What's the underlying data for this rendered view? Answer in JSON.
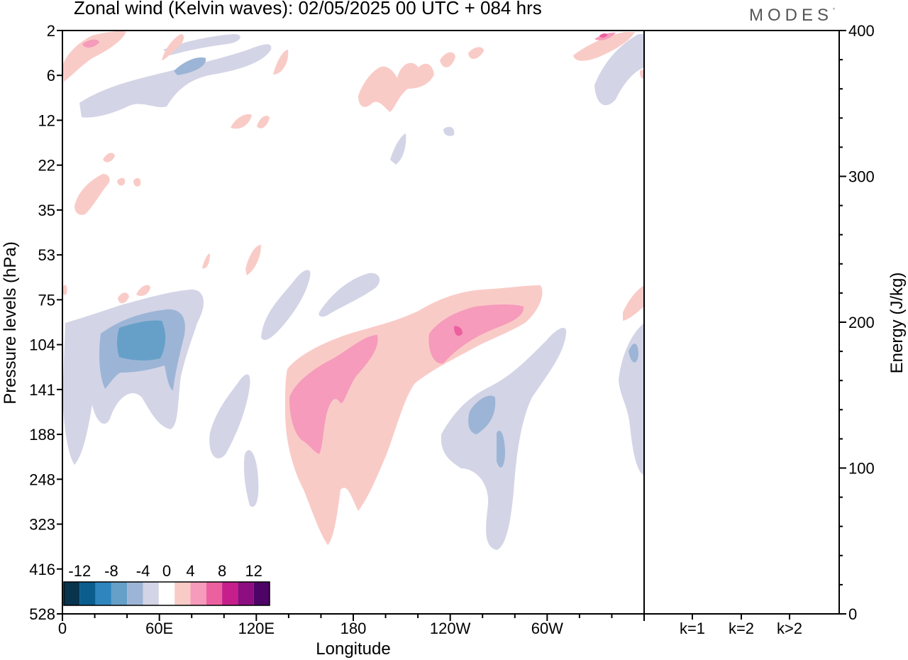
{
  "title": "Zonal wind (Kelvin waves):  02/05/2025  00 UTC  + 084 hrs",
  "logo": {
    "text": "MODES",
    "mark": "°"
  },
  "colors": {
    "levels": [
      "#08344e",
      "#0b5d8e",
      "#2f86bf",
      "#66a0c8",
      "#9cb5d6",
      "#d3d4e6",
      "#ffffff",
      "#f9cbc7",
      "#f69bbb",
      "#ec609f",
      "#c61f8c",
      "#8c0e80",
      "#4d0466"
    ],
    "neg4": "#d3d4e6",
    "neg8": "#9cb5d6",
    "neg12": "#66a0c8",
    "pos4": "#f9cbc7",
    "pos8": "#f69bbb",
    "pos12": "#ec609f"
  },
  "chart_data": [
    {
      "type": "heatmap",
      "title": "Zonal wind (Kelvin waves):  02/05/2025  00 UTC  + 084 hrs",
      "xlabel": "Longitude",
      "ylabel": "Pressure levels (hPa)",
      "xticks": [
        "0",
        "60E",
        "120E",
        "180",
        "120W",
        "60W"
      ],
      "yticks": [
        "2",
        "6",
        "12",
        "22",
        "35",
        "53",
        "75",
        "104",
        "141",
        "188",
        "248",
        "323",
        "416",
        "528"
      ],
      "colorbar": {
        "labels": [
          "-12",
          "-8",
          "-4",
          "0",
          "4",
          "8",
          "12"
        ]
      },
      "features": [
        {
          "sign": "negative",
          "lon_range": [
            25,
            75
          ],
          "pressure_range": [
            75,
            188
          ],
          "peak_ms": -10
        },
        {
          "sign": "positive",
          "lon_range": [
            130,
            280
          ],
          "pressure_range": [
            75,
            416
          ],
          "peak_ms": 9
        },
        {
          "sign": "negative",
          "lon_range": [
            225,
            290
          ],
          "pressure_range": [
            75,
            416
          ],
          "peak_ms": -7
        },
        {
          "sign": "negative",
          "lon_range": [
            10,
            120
          ],
          "pressure_range": [
            2,
            12
          ],
          "peak_ms": -6
        }
      ]
    },
    {
      "type": "bar",
      "categories": [
        "k=1",
        "k=2",
        "k>2"
      ],
      "values": [
        0.5,
        0.3,
        0.4
      ],
      "ylabel": "Energy (J/kg)",
      "ylim": [
        0,
        400
      ],
      "yticks": [
        "0",
        "100",
        "200",
        "300",
        "400"
      ]
    }
  ]
}
